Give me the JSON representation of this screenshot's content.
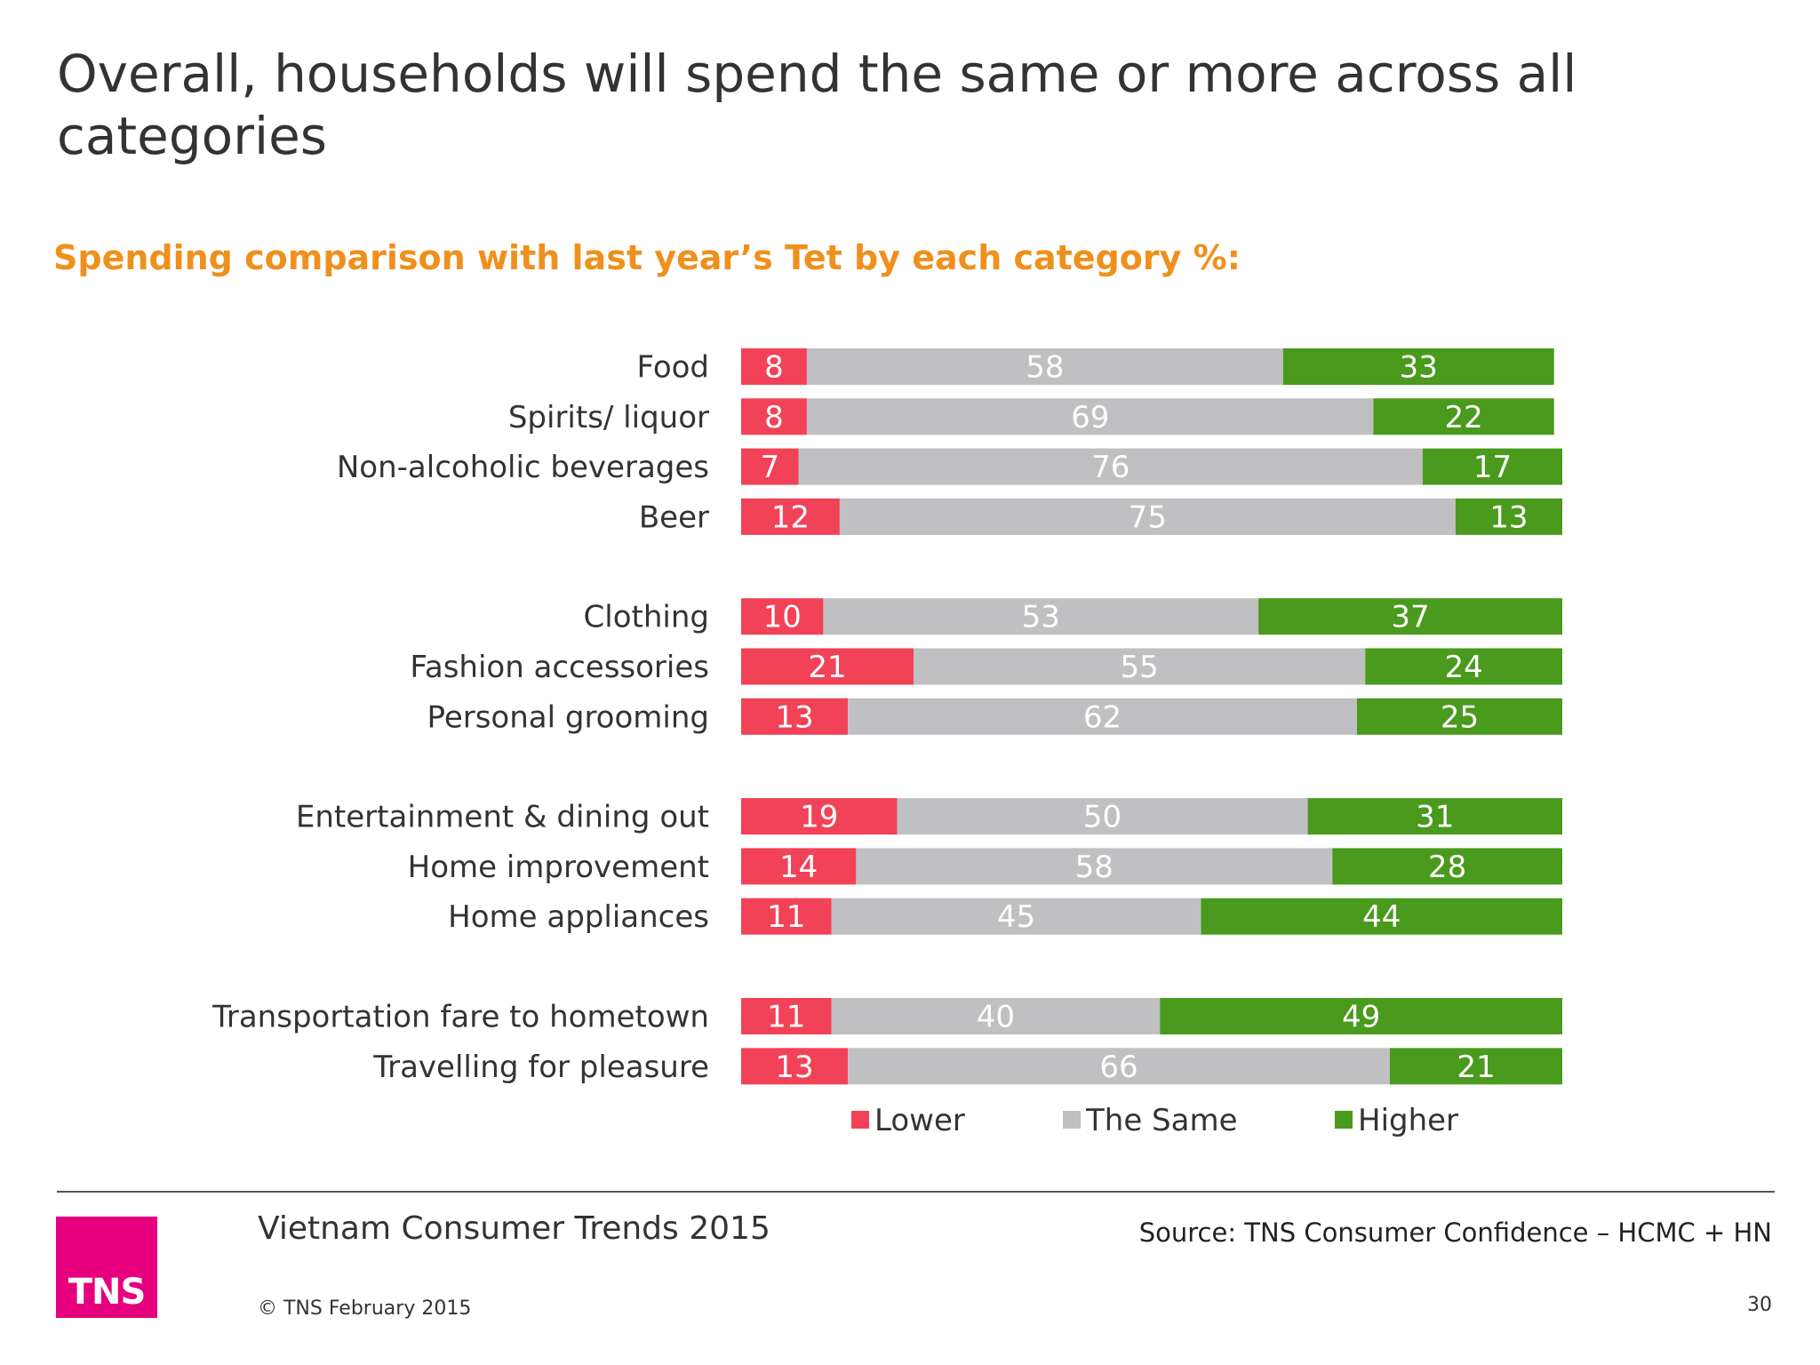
{
  "slide": {
    "title": "Overall, households will spend the same or more across all categories",
    "subtitle": "Spending comparison with last year’s Tet by each category %:"
  },
  "chart_data": {
    "type": "bar",
    "orientation": "horizontal",
    "stacked": true,
    "xlim": [
      0,
      100
    ],
    "categories": [
      "Food",
      "Spirits/ liquor",
      "Non-alcoholic beverages",
      "Beer",
      "Clothing",
      "Fashion accessories",
      "Personal grooming",
      "Entertainment & dining out",
      "Home improvement",
      "Home appliances",
      "Transportation fare to hometown",
      "Travelling for pleasure"
    ],
    "groups": [
      4,
      3,
      3,
      2
    ],
    "series": [
      {
        "name": "Lower",
        "color": "#f24257",
        "values": [
          8,
          8,
          7,
          12,
          10,
          21,
          13,
          19,
          14,
          11,
          11,
          13
        ]
      },
      {
        "name": "The Same",
        "color": "#c0bfc1",
        "values": [
          58,
          69,
          76,
          75,
          53,
          55,
          62,
          50,
          58,
          45,
          40,
          66
        ]
      },
      {
        "name": "Higher",
        "color": "#4a9a1d",
        "values": [
          33,
          22,
          17,
          13,
          37,
          24,
          25,
          31,
          28,
          44,
          49,
          21
        ]
      }
    ],
    "legend": "bottom",
    "grid": false
  },
  "footer": {
    "logo_text": "TNS",
    "report_title": "Vietnam Consumer Trends 2015",
    "copyright": "© TNS February 2015",
    "source": "Source: TNS  Consumer Confidence – HCMC + HN",
    "page_number": "30"
  }
}
